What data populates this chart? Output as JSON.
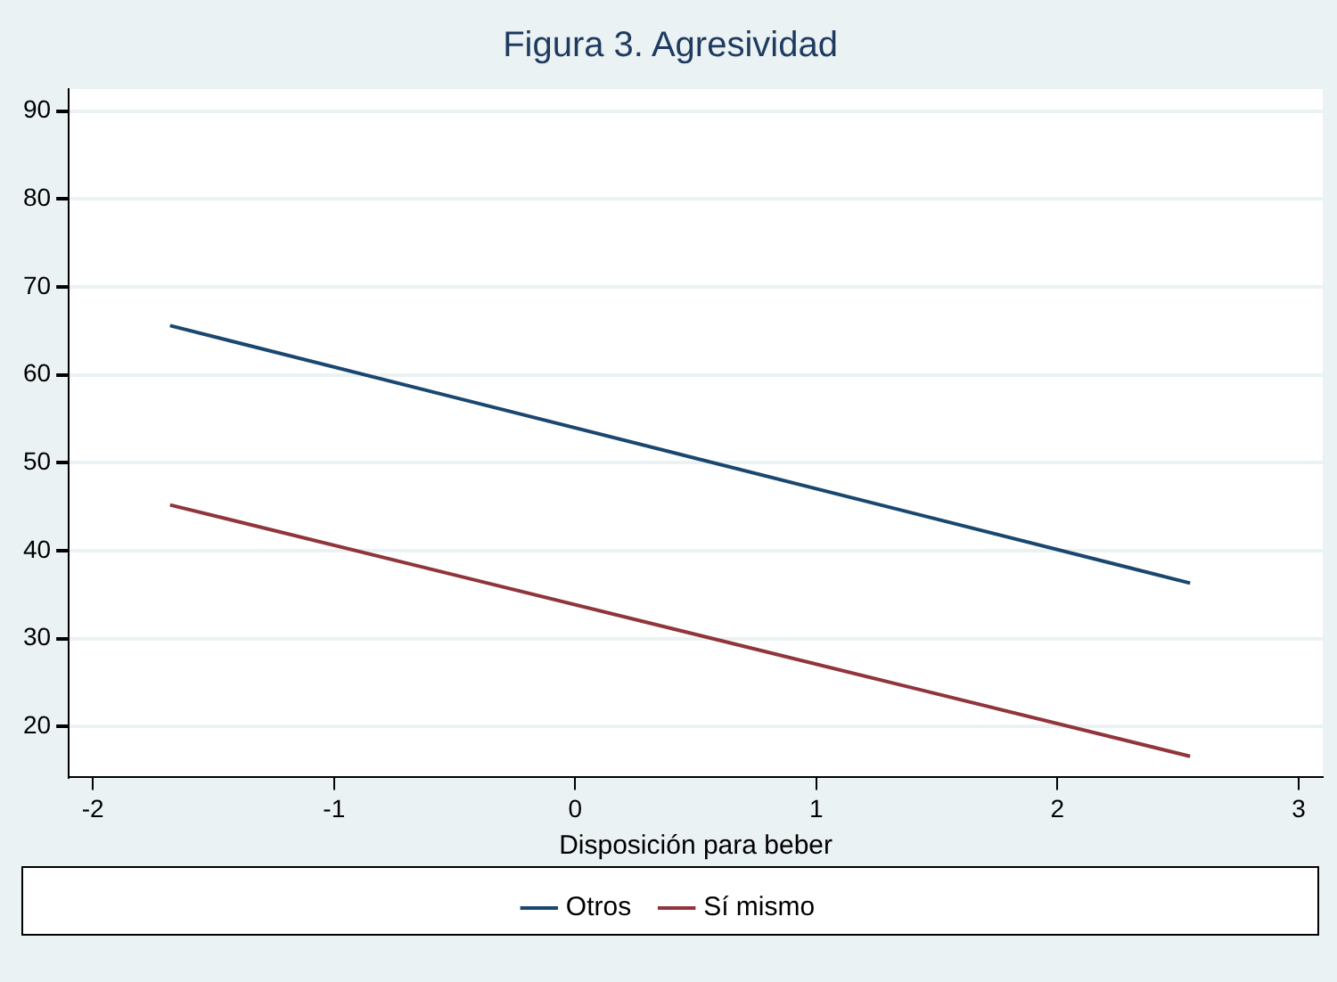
{
  "chart_data": {
    "type": "line",
    "title": "Figura 3. Agresividad",
    "xlabel": "Disposición para beber",
    "x": [
      -1.68,
      2.55
    ],
    "series": [
      {
        "name": "Otros",
        "color": "#1a476f",
        "values": [
          65.6,
          36.3
        ]
      },
      {
        "name": "Sí mismo",
        "color": "#90353b",
        "values": [
          45.2,
          16.6
        ]
      }
    ],
    "xlim": [
      -2.1,
      3.1
    ],
    "xticks": [
      -2,
      -1,
      0,
      1,
      2,
      3
    ],
    "ylim": [
      14.2,
      92.5
    ],
    "yticks": [
      20,
      30,
      40,
      50,
      60,
      70,
      80,
      90
    ],
    "grid": "y",
    "legend": "bottom",
    "marker": "none",
    "line_style": "solid"
  }
}
